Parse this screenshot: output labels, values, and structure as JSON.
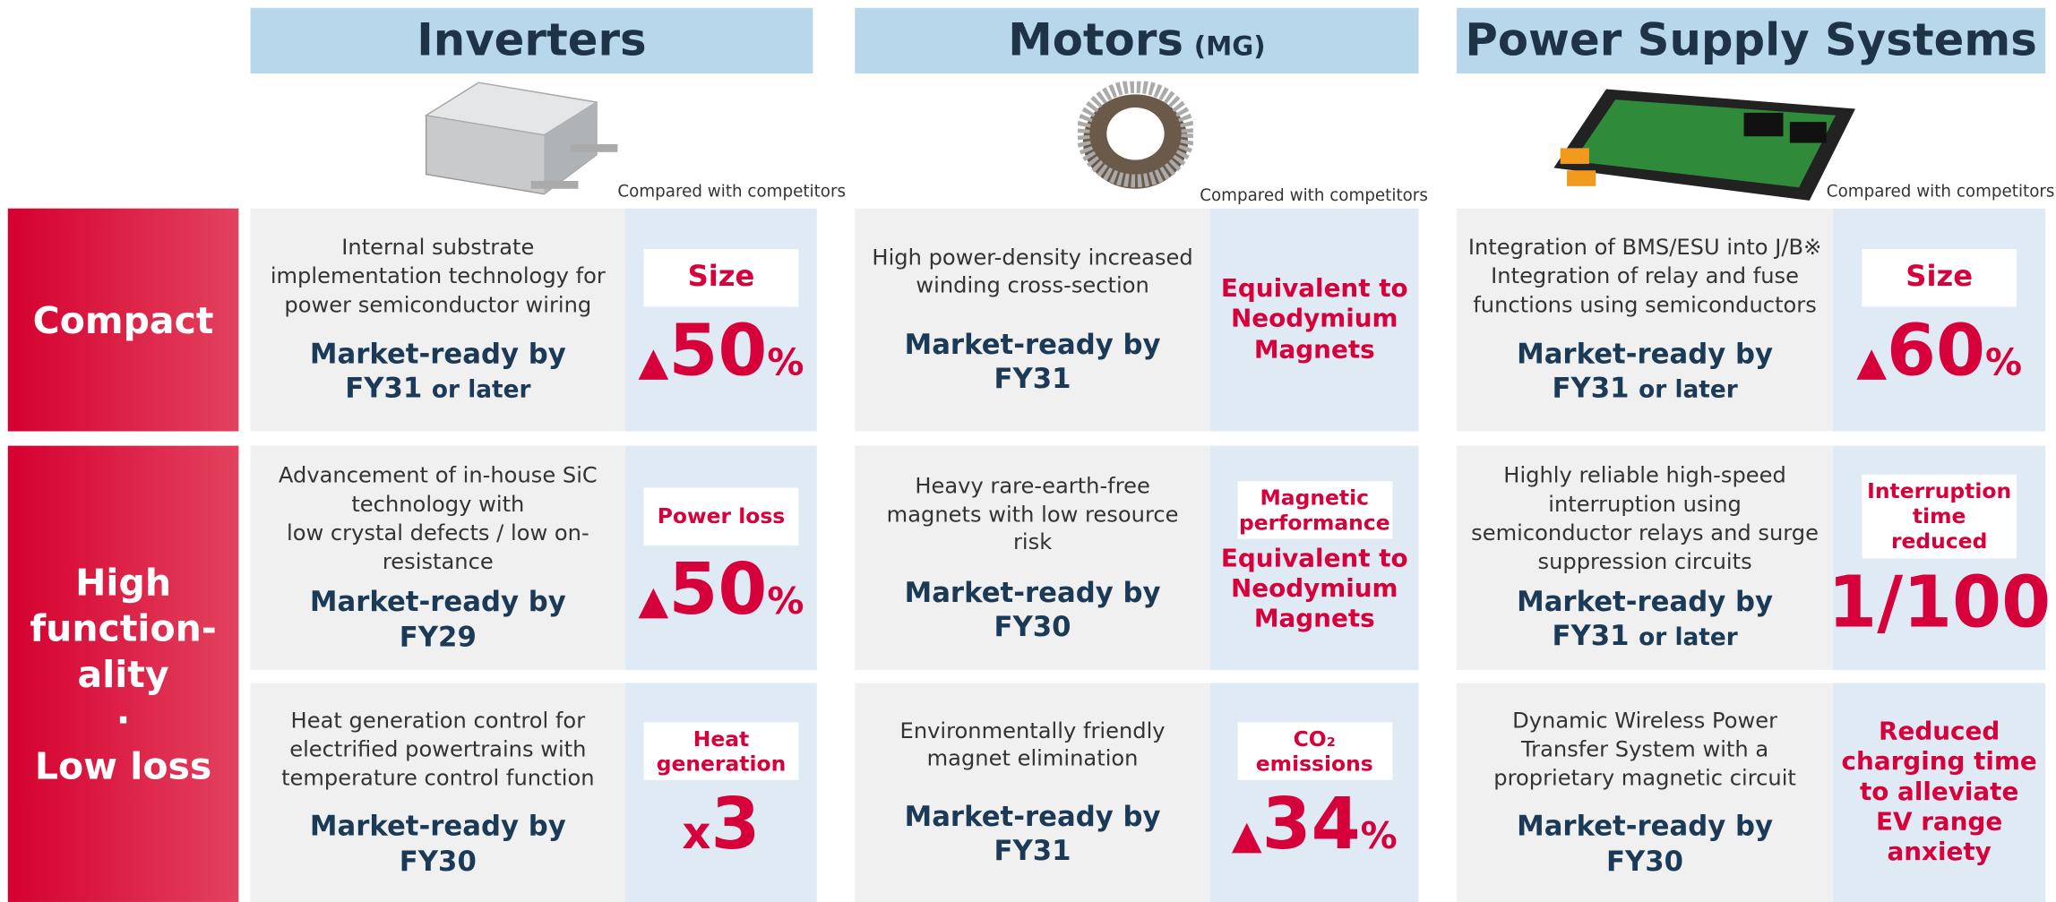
{
  "row_labels": [
    "Compact",
    "High\nfunction-\nality\n·\nLow loss"
  ],
  "columns": [
    {
      "title": "Inverters",
      "note": "Compared with competitors",
      "cells": [
        {
          "description": "Internal substrate implementation technology for power semiconductor wiring",
          "market_ready": "Market-ready by",
          "target": "FY31",
          "qualifier": "or later",
          "metric_label": "Size",
          "metric_prefix": "▲",
          "metric_value": "50",
          "metric_unit": "%"
        },
        {
          "description": "Advancement of in-house SiC technology with\nlow crystal defects / low on-resistance",
          "market_ready": "Market-ready by",
          "target": "FY29",
          "metric_label": "Power loss",
          "metric_prefix": "▲",
          "metric_value": "50",
          "metric_unit": "%"
        },
        {
          "description": "Heat generation control for electrified powertrains with temperature control function",
          "market_ready": "Market-ready by",
          "target": "FY30",
          "metric_label": "Heat generation",
          "metric_prefix": "x",
          "metric_value": "3"
        }
      ]
    },
    {
      "title": "Motors",
      "title_suffix": "(MG)",
      "note": "Compared with competitors",
      "cells": [
        {
          "description": "High power-density increased winding cross-section",
          "market_ready": "Market-ready by",
          "target": "FY31",
          "metric_text": "Equivalent to Neodymium Magnets"
        },
        {
          "description": "Heavy rare-earth-free magnets with low resource risk",
          "market_ready": "Market-ready by",
          "target": "FY30",
          "metric_label": "Magnetic performance",
          "metric_text": "Equivalent to Neodymium Magnets"
        },
        {
          "description": "Environmentally friendly magnet elimination",
          "market_ready": "Market-ready by",
          "target": "FY31",
          "metric_label": "CO₂ emissions",
          "metric_prefix": "▲",
          "metric_value": "34",
          "metric_unit": "%"
        }
      ]
    },
    {
      "title": "Power Supply Systems",
      "note": "Compared with competitors",
      "cells": [
        {
          "description": "Integration of BMS/ESU into J/B※\nIntegration of relay and fuse functions using semiconductors",
          "market_ready": "Market-ready by",
          "target": "FY31",
          "qualifier": "or later",
          "metric_label": "Size",
          "metric_prefix": "▲",
          "metric_value": "60",
          "metric_unit": "%"
        },
        {
          "description": "Highly reliable high-speed interruption using semiconductor relays and surge suppression circuits",
          "market_ready": "Market-ready by",
          "target": "FY31",
          "qualifier": "or later",
          "metric_label": "Interruption time reduced",
          "metric_value": "1/100"
        },
        {
          "description": "Dynamic Wireless Power Transfer System with a proprietary magnetic circuit",
          "market_ready": "Market-ready by",
          "target": "FY30",
          "metric_text": "Reduced charging time to alleviate EV range anxiety"
        }
      ]
    }
  ]
}
